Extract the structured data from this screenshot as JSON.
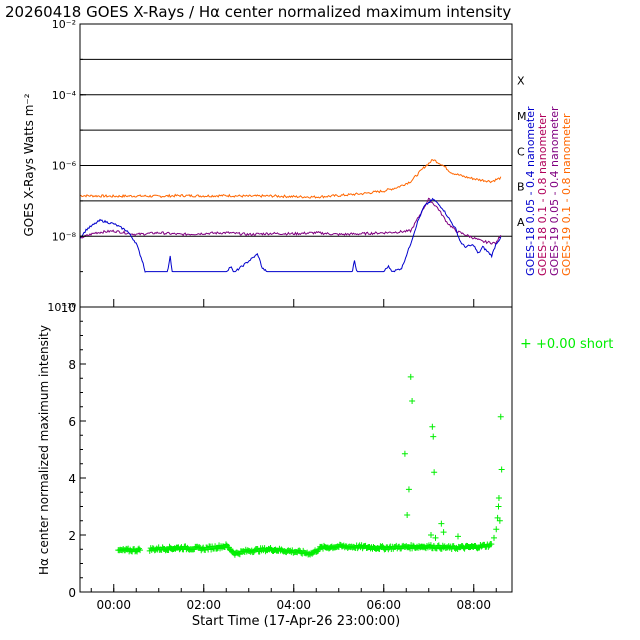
{
  "title": "20260418 GOES X-Rays / Hα center normalized maximum intensity",
  "colors": {
    "goes18_short": "#0000cc",
    "goes18_long": "#b0005a",
    "goes19_short": "#800080",
    "goes19_long": "#ff6600",
    "ha": "#00ee00",
    "axis": "#000000"
  },
  "chart_data": [
    {
      "type": "line",
      "ylabel": "GOES X-Rays Watts m⁻²",
      "yscale": "log",
      "ylim_exp": [
        -10,
        -2
      ],
      "ytick_labels": [
        "10⁻²",
        "10⁻⁴",
        "10⁻⁶",
        "10⁻⁸",
        "10⁻¹⁰"
      ],
      "ytick_exps": [
        -2,
        -4,
        -6,
        -8,
        -10
      ],
      "flare_lines_exp": [
        -3,
        -4,
        -5,
        -6,
        -7,
        -8
      ],
      "flare_classes": [
        {
          "label": "X",
          "exp": -3.6
        },
        {
          "label": "M",
          "exp": -4.6
        },
        {
          "label": "C",
          "exp": -5.6
        },
        {
          "label": "B",
          "exp": -6.6
        },
        {
          "label": "A",
          "exp": -7.6
        }
      ],
      "xlim_hours": [
        -0.75,
        8.85
      ],
      "legend": [
        {
          "label": "GOES-18  0.05 - 0.4 nanometer",
          "color_key": "goes18_short"
        },
        {
          "label": "GOES-18  0.1 - 0.8 nanometer",
          "color_key": "goes18_long"
        },
        {
          "label": "GOES-19  0.05 - 0.4 nanometer",
          "color_key": "goes19_short"
        },
        {
          "label": "GOES-19  0.1 - 0.8 nanometer",
          "color_key": "goes19_long"
        }
      ],
      "series": [
        {
          "name": "GOES-19 0.1-0.8 nm",
          "color_key": "goes19_long",
          "x": [
            -0.75,
            0.0,
            0.5,
            1.0,
            1.5,
            2.0,
            2.5,
            3.0,
            3.5,
            4.0,
            4.5,
            5.0,
            5.5,
            6.0,
            6.3,
            6.6,
            6.9,
            7.1,
            7.3,
            7.5,
            7.8,
            8.1,
            8.4,
            8.6
          ],
          "log_y": [
            -6.85,
            -6.87,
            -6.86,
            -6.87,
            -6.85,
            -6.86,
            -6.85,
            -6.87,
            -6.86,
            -6.88,
            -6.89,
            -6.85,
            -6.8,
            -6.72,
            -6.62,
            -6.45,
            -6.05,
            -5.83,
            -5.98,
            -6.2,
            -6.32,
            -6.4,
            -6.45,
            -6.35
          ]
        },
        {
          "name": "GOES-19 0.05-0.4 nm",
          "color_key": "goes19_short",
          "x": [
            -0.75,
            -0.4,
            0.0,
            0.5,
            1.0,
            1.5,
            2.0,
            2.5,
            3.0,
            3.5,
            4.0,
            4.5,
            5.0,
            5.5,
            6.0,
            6.3,
            6.6,
            6.8,
            7.0,
            7.2,
            7.4,
            7.6,
            7.9,
            8.2,
            8.5,
            8.6
          ],
          "log_y": [
            -8.05,
            -7.9,
            -7.85,
            -7.95,
            -7.9,
            -7.95,
            -7.92,
            -7.9,
            -7.95,
            -7.92,
            -7.93,
            -7.9,
            -7.95,
            -7.93,
            -7.9,
            -7.88,
            -7.85,
            -7.4,
            -6.95,
            -7.2,
            -7.6,
            -7.85,
            -8.0,
            -8.15,
            -8.2,
            -7.95
          ]
        },
        {
          "name": "GOES-18 0.05-0.4 nm",
          "color_key": "goes18_short",
          "x": [
            -0.75,
            -0.6,
            -0.3,
            0.0,
            0.3,
            0.5,
            0.65,
            0.7,
            1.0,
            1.2,
            1.25,
            1.3,
            1.5,
            2.0,
            2.5,
            2.6,
            2.65,
            2.7,
            3.0,
            3.2,
            3.3,
            3.4,
            3.5,
            4.0,
            5.0,
            5.3,
            5.35,
            5.4,
            5.8,
            6.0,
            6.1,
            6.2,
            6.4,
            6.6,
            6.75,
            6.9,
            7.1,
            7.3,
            7.5,
            7.6,
            7.7,
            7.8,
            8.0,
            8.1,
            8.2,
            8.4,
            8.5,
            8.6
          ],
          "log_y": [
            -8.05,
            -7.8,
            -7.55,
            -7.65,
            -7.85,
            -8.2,
            -8.75,
            -9.0,
            -9.0,
            -9.0,
            -8.55,
            -9.0,
            -9.0,
            -9.0,
            -9.0,
            -8.85,
            -9.0,
            -9.0,
            -8.7,
            -8.5,
            -8.9,
            -9.0,
            -9.0,
            -9.0,
            -9.0,
            -9.0,
            -8.7,
            -9.0,
            -9.0,
            -9.0,
            -8.85,
            -9.0,
            -8.9,
            -8.2,
            -7.6,
            -7.15,
            -6.95,
            -7.2,
            -7.6,
            -7.8,
            -8.15,
            -8.3,
            -8.25,
            -8.5,
            -8.3,
            -8.55,
            -8.2,
            -8.05
          ]
        }
      ]
    },
    {
      "type": "scatter",
      "ylabel": "Hα center normalized maximum intensity",
      "ylim": [
        0,
        10
      ],
      "yticks": [
        0,
        2,
        4,
        6,
        8,
        10
      ],
      "xlabel": "Start Time (17-Apr-26 23:00:00)",
      "xlim_hours": [
        -0.75,
        8.85
      ],
      "xticks_hours": [
        0,
        2,
        4,
        6,
        8
      ],
      "xtick_labels": [
        "00:00",
        "02:00",
        "04:00",
        "06:00",
        "08:00"
      ],
      "legend": {
        "label": "+0.00 short",
        "color_key": "ha"
      },
      "series": [
        {
          "name": "Hα baseline",
          "segments": [
            [
              0.1,
              0.6
            ],
            [
              0.8,
              8.4
            ]
          ],
          "baseline_x": [
            0.1,
            0.6,
            0.8,
            1.5,
            2.0,
            2.5,
            2.7,
            3.0,
            3.5,
            4.0,
            4.4,
            4.6,
            5.0,
            5.5,
            6.0,
            6.5,
            7.0,
            7.5,
            8.0,
            8.4
          ],
          "baseline_y": [
            1.45,
            1.48,
            1.5,
            1.55,
            1.52,
            1.62,
            1.35,
            1.45,
            1.5,
            1.42,
            1.35,
            1.55,
            1.6,
            1.58,
            1.55,
            1.58,
            1.6,
            1.55,
            1.58,
            1.65
          ]
        },
        {
          "name": "Hα excursions",
          "x": [
            6.47,
            6.52,
            6.56,
            6.6,
            6.63,
            7.05,
            7.08,
            7.1,
            7.12,
            7.15,
            7.28,
            7.33,
            7.65,
            8.45,
            8.5,
            8.53,
            8.55,
            8.56,
            8.58,
            8.6,
            8.62
          ],
          "y": [
            4.85,
            2.7,
            3.6,
            7.55,
            6.7,
            2.0,
            5.8,
            5.45,
            4.2,
            1.9,
            2.4,
            2.1,
            1.95,
            1.9,
            2.2,
            2.6,
            3.0,
            3.3,
            2.5,
            6.15,
            4.3
          ]
        }
      ]
    }
  ]
}
